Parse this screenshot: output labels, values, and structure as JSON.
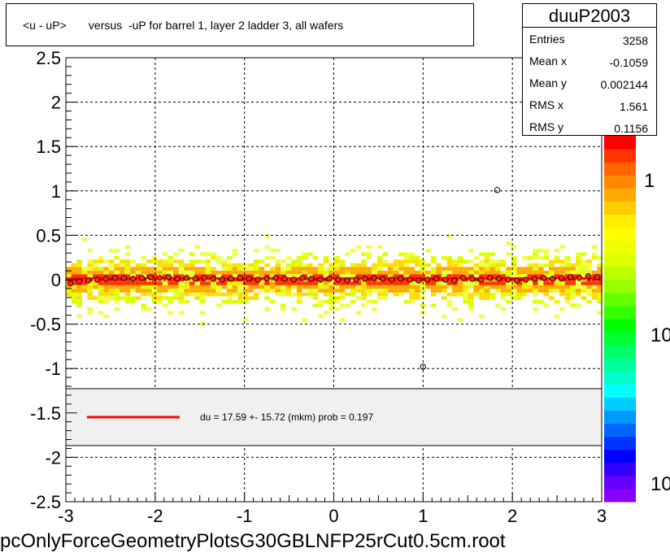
{
  "chart_data": {
    "type": "scatter",
    "title": "<u - uP>       versus  -uP for barrel 1, layer 2 ladder 3, all wafers",
    "xlim": [
      -3,
      3
    ],
    "ylim": [
      -2.5,
      2.5
    ],
    "x_ticks": [
      "-3",
      "-2",
      "-1",
      "0",
      "1",
      "2",
      "3"
    ],
    "y_ticks": [
      "2.5",
      "2",
      "1.5",
      "1",
      "0.5",
      "0",
      "-0.5",
      "-1",
      "-1.5",
      "-2",
      "-2.5"
    ],
    "grid": true,
    "colorbar_labels": [
      "1",
      "10",
      "10"
    ],
    "profile_points": [
      [
        -2.95,
        -0.04
      ],
      [
        -2.85,
        -0.02
      ],
      [
        -2.75,
        -0.01
      ],
      [
        -2.65,
        0.0
      ],
      [
        -2.55,
        0.01
      ],
      [
        -2.45,
        0.02
      ],
      [
        -2.35,
        0.02
      ],
      [
        -2.25,
        0.01
      ],
      [
        -2.15,
        0.02
      ],
      [
        -2.05,
        0.03
      ],
      [
        -1.95,
        0.02
      ],
      [
        -1.85,
        0.03
      ],
      [
        -1.75,
        0.01
      ],
      [
        -1.65,
        0.02
      ],
      [
        -1.55,
        0.01
      ],
      [
        -1.45,
        0.02
      ],
      [
        -1.35,
        0.01
      ],
      [
        -1.25,
        0.0
      ],
      [
        -1.15,
        0.01
      ],
      [
        -1.05,
        0.02
      ],
      [
        -0.95,
        0.01
      ],
      [
        -0.85,
        0.0
      ],
      [
        -0.75,
        0.01
      ],
      [
        -0.65,
        0.02
      ],
      [
        -0.55,
        0.01
      ],
      [
        -0.45,
        0.0
      ],
      [
        -0.35,
        0.02
      ],
      [
        -0.25,
        0.01
      ],
      [
        -0.15,
        0.0
      ],
      [
        -0.05,
        0.01
      ],
      [
        0.05,
        0.0
      ],
      [
        0.15,
        -0.01
      ],
      [
        0.25,
        0.0
      ],
      [
        0.35,
        0.01
      ],
      [
        0.45,
        0.02
      ],
      [
        0.55,
        0.01
      ],
      [
        0.65,
        0.0
      ],
      [
        0.75,
        0.01
      ],
      [
        0.85,
        0.0
      ],
      [
        0.95,
        -0.01
      ],
      [
        1.05,
        0.0
      ],
      [
        1.15,
        0.01
      ],
      [
        1.25,
        0.0
      ],
      [
        1.35,
        -0.01
      ],
      [
        1.45,
        0.02
      ],
      [
        1.55,
        0.01
      ],
      [
        1.65,
        0.0
      ],
      [
        1.75,
        0.02
      ],
      [
        1.85,
        0.01
      ],
      [
        1.95,
        0.0
      ],
      [
        2.05,
        -0.01
      ],
      [
        2.15,
        0.0
      ],
      [
        2.25,
        0.01
      ],
      [
        2.35,
        0.02
      ],
      [
        2.45,
        0.01
      ],
      [
        2.55,
        0.02
      ],
      [
        2.65,
        0.03
      ],
      [
        2.75,
        0.02
      ],
      [
        2.85,
        0.04
      ],
      [
        2.95,
        0.03
      ]
    ],
    "outliers": [
      [
        1.83,
        1.01
      ],
      [
        1.0,
        -0.98
      ]
    ],
    "fit_line": {
      "x": [
        -3,
        3
      ],
      "y": [
        0.0176,
        0.0176
      ]
    }
  },
  "stats": {
    "name": "duuP2003",
    "rows": [
      {
        "key": "Entries",
        "value": "3258"
      },
      {
        "key": "Mean x",
        "value": "-0.1059"
      },
      {
        "key": "Mean y",
        "value": "0.002144"
      },
      {
        "key": "RMS x",
        "value": "1.561"
      },
      {
        "key": "RMS y",
        "value": "0.1156"
      }
    ]
  },
  "legend": {
    "fit_text": "du =    17.59 +- 15.72 (mkm) prob = 0.197",
    "line_color": "#ff0000"
  },
  "footer": "pcOnlyForceGeometryPlotsG30GBLNFP25rCut0.5cm.root"
}
